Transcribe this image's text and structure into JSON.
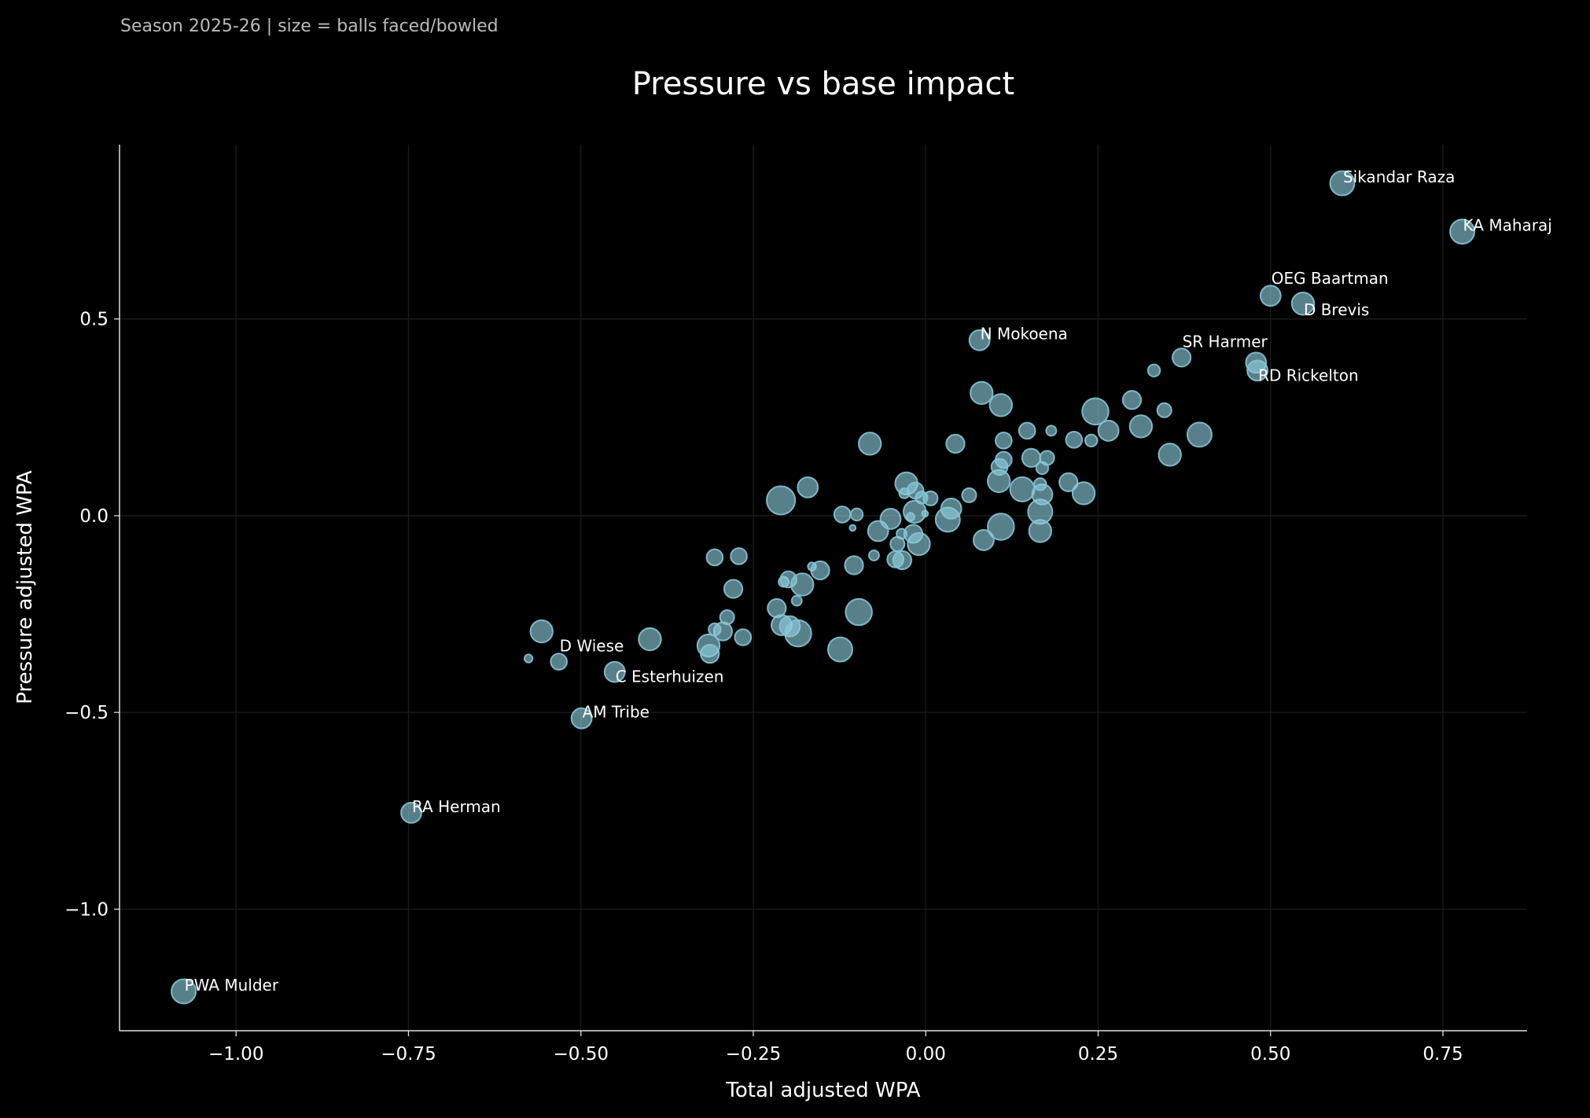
{
  "subtitle": "Season 2025-26 | size = balls faced/bowled",
  "chart_data": {
    "type": "scatter",
    "title": "Pressure vs base impact",
    "xlabel": "Total adjusted WPA",
    "ylabel": "Pressure adjusted WPA",
    "xlim": [
      -1.169,
      0.872
    ],
    "ylim": [
      -1.309,
      0.943
    ],
    "xticks": [
      -1.0,
      -0.75,
      -0.5,
      -0.25,
      0.0,
      0.25,
      0.5,
      0.75
    ],
    "xtick_labels": [
      "−1.00",
      "−0.75",
      "−0.50",
      "−0.25",
      "0.00",
      "0.25",
      "0.50",
      "0.75"
    ],
    "yticks": [
      0.5,
      0.0,
      -0.5,
      -1.0
    ],
    "ytick_labels": [
      "0.5",
      "0.0",
      "−0.5",
      "−1.0"
    ],
    "grid": true,
    "colors": {
      "background": "#000000",
      "point_fill": "#8ecfdf",
      "point_edge": "#86c4d4",
      "grid": "#1c1c1c",
      "text": "#ffffff",
      "subtitle": "#bbbbbb"
    },
    "labeled_points": [
      {
        "label": "Sikandar Raza",
        "x": 0.604,
        "y": 0.845,
        "balls": 288
      },
      {
        "label": "KA Maharaj",
        "x": 0.778,
        "y": 0.722,
        "balls": 288
      },
      {
        "label": "OEG Baartman",
        "x": 0.5,
        "y": 0.559,
        "balls": 200
      },
      {
        "label": "D Brevis",
        "x": 0.547,
        "y": 0.539,
        "balls": 242
      },
      {
        "label": "N Mokoena",
        "x": 0.078,
        "y": 0.446,
        "balls": 200
      },
      {
        "label": "SR Harmer",
        "x": 0.371,
        "y": 0.402,
        "balls": 162
      },
      {
        "label": "RD Rickelton",
        "x": 0.481,
        "y": 0.369,
        "balls": 200
      },
      {
        "label": "D Wiese",
        "x": -0.532,
        "y": -0.371,
        "balls": 128
      },
      {
        "label": "C Esterhuizen",
        "x": -0.451,
        "y": -0.397,
        "balls": 200
      },
      {
        "label": "AM Tribe",
        "x": -0.499,
        "y": -0.515,
        "balls": 200
      },
      {
        "label": "RA Herman",
        "x": -0.746,
        "y": -0.755,
        "balls": 200
      },
      {
        "label": "PWA Mulder",
        "x": -1.076,
        "y": -1.209,
        "balls": 288
      }
    ],
    "points": [
      {
        "x": 0.479,
        "y": 0.389,
        "balls": 200
      },
      {
        "x": -0.576,
        "y": -0.363,
        "balls": 32
      },
      {
        "x": -0.557,
        "y": -0.294,
        "balls": 242
      },
      {
        "x": -0.4,
        "y": -0.314,
        "balls": 242
      },
      {
        "x": -0.315,
        "y": -0.33,
        "balls": 242
      },
      {
        "x": -0.313,
        "y": -0.351,
        "balls": 162
      },
      {
        "x": -0.306,
        "y": -0.106,
        "balls": 128
      },
      {
        "x": -0.271,
        "y": -0.103,
        "balls": 128
      },
      {
        "x": -0.279,
        "y": -0.186,
        "balls": 162
      },
      {
        "x": -0.294,
        "y": -0.294,
        "balls": 162
      },
      {
        "x": -0.288,
        "y": -0.258,
        "balls": 98
      },
      {
        "x": -0.306,
        "y": -0.289,
        "balls": 72
      },
      {
        "x": -0.265,
        "y": -0.309,
        "balls": 128
      },
      {
        "x": -0.216,
        "y": -0.235,
        "balls": 162
      },
      {
        "x": -0.209,
        "y": -0.278,
        "balls": 200
      },
      {
        "x": -0.197,
        "y": -0.281,
        "balls": 200
      },
      {
        "x": -0.185,
        "y": -0.299,
        "balls": 338
      },
      {
        "x": -0.206,
        "y": -0.168,
        "balls": 50
      },
      {
        "x": -0.187,
        "y": -0.216,
        "balls": 50
      },
      {
        "x": -0.199,
        "y": -0.162,
        "balls": 128
      },
      {
        "x": -0.179,
        "y": -0.175,
        "balls": 242
      },
      {
        "x": -0.165,
        "y": -0.129,
        "balls": 32
      },
      {
        "x": -0.153,
        "y": -0.139,
        "balls": 162
      },
      {
        "x": -0.171,
        "y": 0.072,
        "balls": 200
      },
      {
        "x": -0.21,
        "y": 0.039,
        "balls": 392
      },
      {
        "x": -0.121,
        "y": 0.003,
        "balls": 128
      },
      {
        "x": -0.1,
        "y": 0.003,
        "balls": 72
      },
      {
        "x": -0.104,
        "y": -0.126,
        "balls": 162
      },
      {
        "x": -0.106,
        "y": -0.031,
        "balls": 18
      },
      {
        "x": -0.124,
        "y": -0.34,
        "balls": 288
      },
      {
        "x": -0.097,
        "y": -0.245,
        "balls": 338
      },
      {
        "x": -0.081,
        "y": 0.183,
        "balls": 242
      },
      {
        "x": -0.075,
        "y": -0.101,
        "balls": 50
      },
      {
        "x": -0.069,
        "y": -0.039,
        "balls": 200
      },
      {
        "x": -0.051,
        "y": -0.008,
        "balls": 200
      },
      {
        "x": -0.044,
        "y": -0.111,
        "balls": 128
      },
      {
        "x": -0.034,
        "y": -0.113,
        "balls": 162
      },
      {
        "x": -0.041,
        "y": -0.072,
        "balls": 98
      },
      {
        "x": -0.035,
        "y": -0.046,
        "balls": 50
      },
      {
        "x": -0.028,
        "y": 0.082,
        "balls": 242
      },
      {
        "x": -0.031,
        "y": 0.057,
        "balls": 50
      },
      {
        "x": -0.015,
        "y": 0.064,
        "balls": 128
      },
      {
        "x": -0.016,
        "y": 0.01,
        "balls": 242
      },
      {
        "x": -0.022,
        "y": -0.003,
        "balls": 32
      },
      {
        "x": -0.018,
        "y": -0.046,
        "balls": 162
      },
      {
        "x": -0.01,
        "y": -0.072,
        "balls": 242
      },
      {
        "x": -0.001,
        "y": 0.005,
        "balls": 18
      },
      {
        "x": 0.007,
        "y": 0.044,
        "balls": 98
      },
      {
        "x": -0.006,
        "y": 0.046,
        "balls": 72
      },
      {
        "x": 0.032,
        "y": -0.01,
        "balls": 288
      },
      {
        "x": 0.037,
        "y": 0.018,
        "balls": 200
      },
      {
        "x": 0.043,
        "y": 0.183,
        "balls": 162
      },
      {
        "x": 0.063,
        "y": 0.052,
        "balls": 98
      },
      {
        "x": 0.081,
        "y": 0.312,
        "balls": 242
      },
      {
        "x": 0.109,
        "y": 0.281,
        "balls": 242
      },
      {
        "x": 0.084,
        "y": -0.062,
        "balls": 200
      },
      {
        "x": 0.109,
        "y": -0.028,
        "balls": 338
      },
      {
        "x": 0.113,
        "y": 0.191,
        "balls": 128
      },
      {
        "x": 0.113,
        "y": 0.142,
        "balls": 128
      },
      {
        "x": 0.106,
        "y": 0.088,
        "balls": 242
      },
      {
        "x": 0.107,
        "y": 0.124,
        "balls": 128
      },
      {
        "x": 0.147,
        "y": 0.216,
        "balls": 128
      },
      {
        "x": 0.14,
        "y": 0.067,
        "balls": 288
      },
      {
        "x": 0.153,
        "y": 0.147,
        "balls": 162
      },
      {
        "x": 0.166,
        "y": 0.01,
        "balls": 288
      },
      {
        "x": 0.166,
        "y": -0.039,
        "balls": 242
      },
      {
        "x": 0.169,
        "y": 0.054,
        "balls": 200
      },
      {
        "x": 0.166,
        "y": 0.08,
        "balls": 72
      },
      {
        "x": 0.169,
        "y": 0.121,
        "balls": 72
      },
      {
        "x": 0.176,
        "y": 0.147,
        "balls": 98
      },
      {
        "x": 0.182,
        "y": 0.216,
        "balls": 50
      },
      {
        "x": 0.207,
        "y": 0.085,
        "balls": 162
      },
      {
        "x": 0.215,
        "y": 0.193,
        "balls": 128
      },
      {
        "x": 0.24,
        "y": 0.191,
        "balls": 72
      },
      {
        "x": 0.229,
        "y": 0.057,
        "balls": 242
      },
      {
        "x": 0.246,
        "y": 0.265,
        "balls": 338
      },
      {
        "x": 0.265,
        "y": 0.216,
        "balls": 200
      },
      {
        "x": 0.299,
        "y": 0.294,
        "balls": 162
      },
      {
        "x": 0.312,
        "y": 0.227,
        "balls": 242
      },
      {
        "x": 0.331,
        "y": 0.369,
        "balls": 72
      },
      {
        "x": 0.346,
        "y": 0.268,
        "balls": 98
      },
      {
        "x": 0.354,
        "y": 0.155,
        "balls": 242
      },
      {
        "x": 0.397,
        "y": 0.206,
        "balls": 288
      }
    ]
  }
}
